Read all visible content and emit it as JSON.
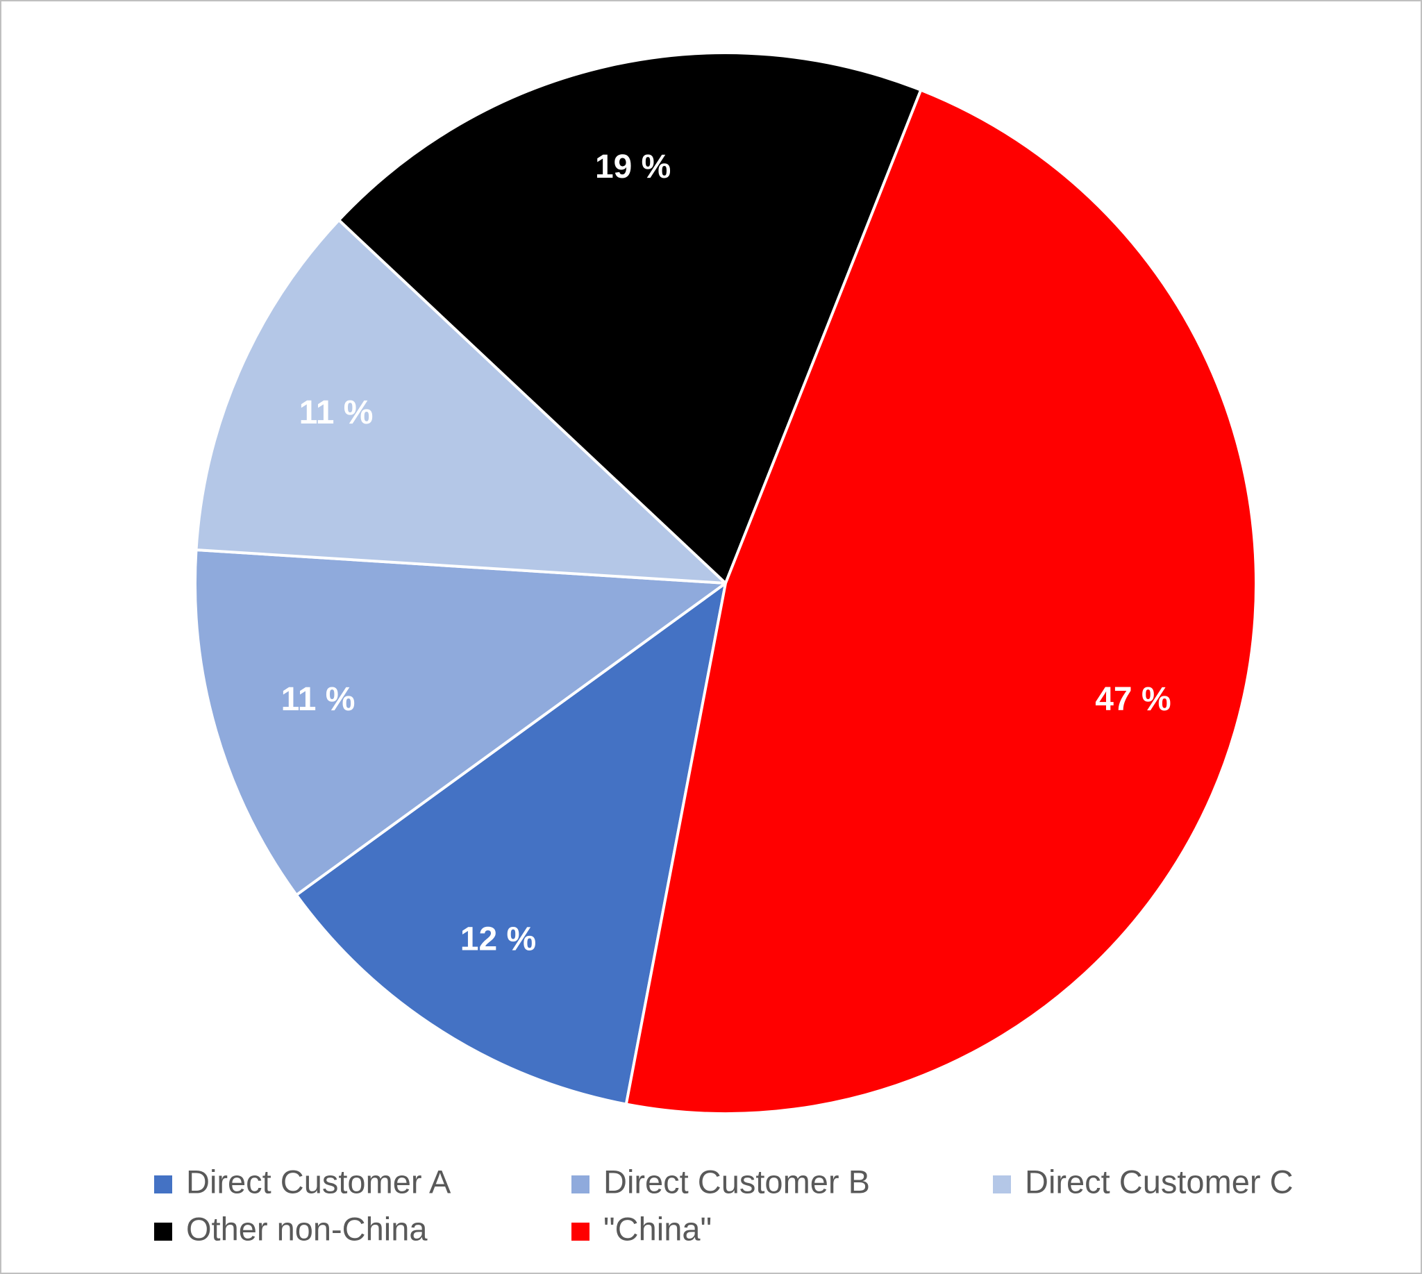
{
  "chart_data": {
    "type": "pie",
    "categories": [
      "Direct Customer A",
      "Direct Customer B",
      "Direct Customer C",
      "Other non-China",
      "\"China\""
    ],
    "values": [
      12,
      11,
      11,
      19,
      47
    ],
    "value_labels": [
      "12 %",
      "11 %",
      "11 %",
      "19 %",
      "47 %"
    ],
    "colors": [
      "#4472c4",
      "#8faadc",
      "#b4c7e7",
      "#000000",
      "#ff0000"
    ],
    "legend": "bottom"
  }
}
